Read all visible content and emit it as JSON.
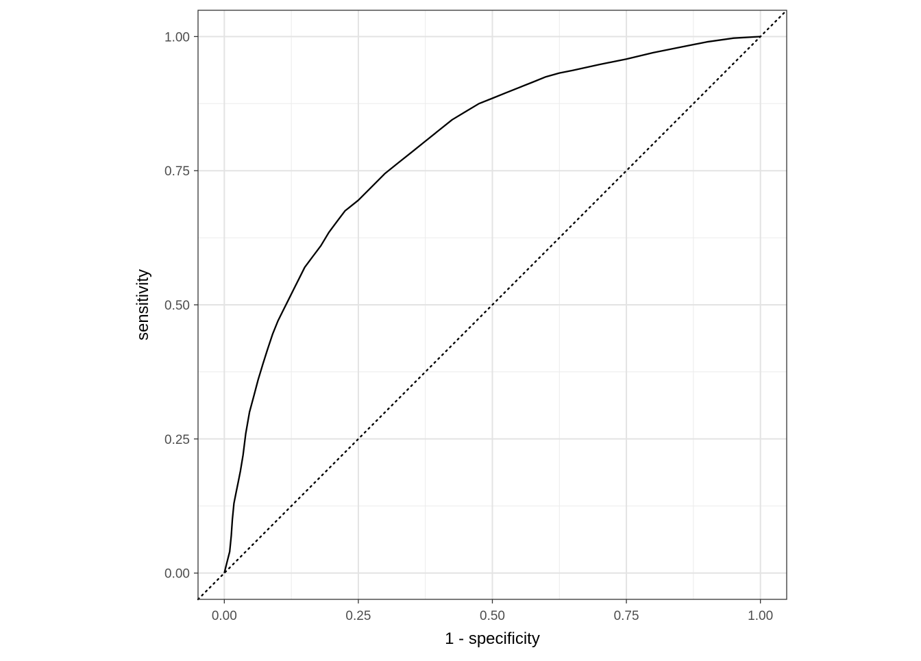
{
  "chart_data": {
    "type": "line",
    "title": "",
    "xlabel": "1 - specificity",
    "ylabel": "sensitivity",
    "xlim": [
      -0.049,
      1.049
    ],
    "ylim": [
      -0.049,
      1.049
    ],
    "x_ticks": [
      {
        "value": 0,
        "label": "0.00"
      },
      {
        "value": 0.25,
        "label": "0.25"
      },
      {
        "value": 0.5,
        "label": "0.50"
      },
      {
        "value": 0.75,
        "label": "0.75"
      },
      {
        "value": 1,
        "label": "1.00"
      }
    ],
    "y_ticks": [
      {
        "value": 0,
        "label": "0.00"
      },
      {
        "value": 0.25,
        "label": "0.25"
      },
      {
        "value": 0.5,
        "label": "0.50"
      },
      {
        "value": 0.75,
        "label": "0.75"
      },
      {
        "value": 1,
        "label": "1.00"
      }
    ],
    "minor_breaks": [
      0.125,
      0.375,
      0.625,
      0.875
    ],
    "grid": true,
    "theme": "bw",
    "series": [
      {
        "style": "solid",
        "color": "#000000",
        "points": [
          [
            0.0,
            0.0
          ],
          [
            0.005,
            0.02
          ],
          [
            0.01,
            0.04
          ],
          [
            0.013,
            0.07
          ],
          [
            0.015,
            0.1
          ],
          [
            0.018,
            0.13
          ],
          [
            0.022,
            0.15
          ],
          [
            0.026,
            0.17
          ],
          [
            0.03,
            0.19
          ],
          [
            0.035,
            0.22
          ],
          [
            0.04,
            0.26
          ],
          [
            0.047,
            0.3
          ],
          [
            0.055,
            0.33
          ],
          [
            0.063,
            0.36
          ],
          [
            0.072,
            0.39
          ],
          [
            0.08,
            0.415
          ],
          [
            0.09,
            0.445
          ],
          [
            0.1,
            0.47
          ],
          [
            0.11,
            0.49
          ],
          [
            0.12,
            0.51
          ],
          [
            0.13,
            0.53
          ],
          [
            0.14,
            0.55
          ],
          [
            0.15,
            0.57
          ],
          [
            0.165,
            0.59
          ],
          [
            0.18,
            0.61
          ],
          [
            0.195,
            0.635
          ],
          [
            0.21,
            0.655
          ],
          [
            0.225,
            0.675
          ],
          [
            0.25,
            0.695
          ],
          [
            0.275,
            0.72
          ],
          [
            0.3,
            0.745
          ],
          [
            0.325,
            0.765
          ],
          [
            0.35,
            0.785
          ],
          [
            0.375,
            0.805
          ],
          [
            0.4,
            0.825
          ],
          [
            0.425,
            0.845
          ],
          [
            0.45,
            0.86
          ],
          [
            0.475,
            0.875
          ],
          [
            0.5,
            0.885
          ],
          [
            0.525,
            0.895
          ],
          [
            0.55,
            0.905
          ],
          [
            0.575,
            0.915
          ],
          [
            0.6,
            0.925
          ],
          [
            0.625,
            0.932
          ],
          [
            0.65,
            0.937
          ],
          [
            0.7,
            0.948
          ],
          [
            0.75,
            0.958
          ],
          [
            0.8,
            0.97
          ],
          [
            0.85,
            0.98
          ],
          [
            0.9,
            0.99
          ],
          [
            0.95,
            0.997
          ],
          [
            1.0,
            1.0
          ]
        ]
      },
      {
        "style": "dotted",
        "color": "#000000",
        "points": [
          [
            -0.049,
            -0.049
          ],
          [
            1.049,
            1.049
          ]
        ]
      }
    ]
  }
}
